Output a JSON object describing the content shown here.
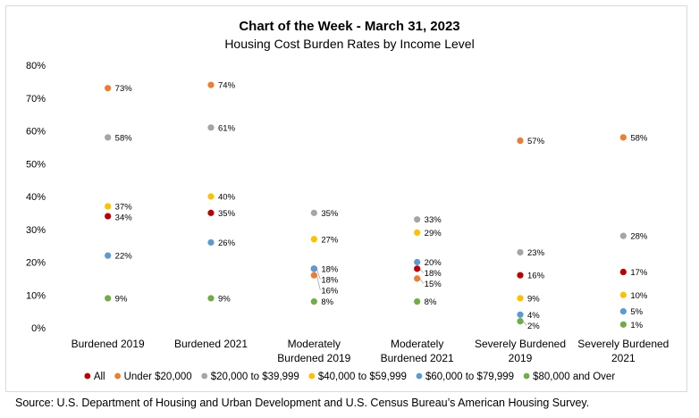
{
  "chart_data": {
    "type": "scatter",
    "title": "Chart of the Week - March 31, 2023",
    "subtitle": "Housing Cost Burden Rates by Income Level",
    "xlabel": "",
    "ylabel": "",
    "ylim": [
      0,
      80
    ],
    "yticks": [
      "0%",
      "10%",
      "20%",
      "30%",
      "40%",
      "50%",
      "60%",
      "70%",
      "80%"
    ],
    "categories": [
      [
        "Burdened 2019"
      ],
      [
        "Burdened 2021"
      ],
      [
        "Moderately",
        "Burdened 2019"
      ],
      [
        "Moderately",
        "Burdened 2021"
      ],
      [
        "Severely Burdened",
        "2019"
      ],
      [
        "Severely Burdened",
        "2021"
      ]
    ],
    "series": [
      {
        "name": "All",
        "color": "#c00000",
        "values": [
          34,
          35,
          18,
          18,
          16,
          17
        ]
      },
      {
        "name": "Under $20,000",
        "color": "#ed7d31",
        "values": [
          73,
          74,
          16,
          15,
          57,
          58
        ]
      },
      {
        "name": "$20,000 to $39,999",
        "color": "#a5a5a5",
        "values": [
          58,
          61,
          35,
          33,
          23,
          28
        ]
      },
      {
        "name": "$40,000 to $59,999",
        "color": "#ffc000",
        "values": [
          37,
          40,
          27,
          29,
          9,
          10
        ]
      },
      {
        "name": "$60,000 to $79,999",
        "color": "#5b9bd5",
        "values": [
          22,
          26,
          18,
          20,
          4,
          5
        ]
      },
      {
        "name": "$80,000 and Over",
        "color": "#70ad47",
        "values": [
          9,
          9,
          8,
          8,
          2,
          1
        ]
      }
    ],
    "legend_position": "bottom",
    "grid": false
  },
  "source": "Source: U.S. Department of Housing and Urban Development and U.S. Census Bureau’s American Housing Survey."
}
